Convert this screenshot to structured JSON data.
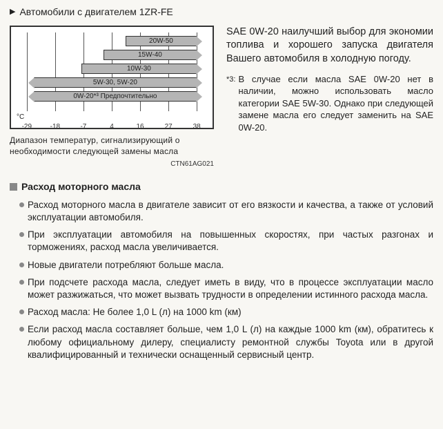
{
  "header": {
    "title": "Автомобили с двигателем 1ZR-FE"
  },
  "chart": {
    "unit_label": "°C",
    "ticks": [
      "-29",
      "-18",
      "-7",
      "4",
      "16",
      "27",
      "38"
    ],
    "bars": [
      {
        "label": "20W-50",
        "left_pct": 58,
        "right_pct": 100,
        "left_arrow": false,
        "right_arrow": true
      },
      {
        "label": "15W-40",
        "left_pct": 45,
        "right_pct": 100,
        "left_arrow": false,
        "right_arrow": true
      },
      {
        "label": "10W-30",
        "left_pct": 32,
        "right_pct": 100,
        "left_arrow": false,
        "right_arrow": true
      },
      {
        "label": "5W-30, 5W-20",
        "left_pct": 4,
        "right_pct": 100,
        "left_arrow": true,
        "right_arrow": true
      },
      {
        "label": "0W-20*³ Предпочтительно",
        "left_pct": 4,
        "right_pct": 100,
        "left_arrow": true,
        "right_arrow": true
      }
    ],
    "caption": "Диапазон температур, сигнализирующий о необходимости следующей замены масла",
    "code": "CTN61AG021"
  },
  "main_paragraph": "SAE 0W-20 наилучший выбор для экономии топлива и хорошего запуска двигателя Вашего автомобиля в холодную погоду.",
  "footnote": {
    "marker": "*3:",
    "text": "В случае если масла SAE 0W-20 нет в наличии, можно использовать масло категории SAE 5W-30. Однако при следующей замене масла его следует заменить на SAE 0W-20."
  },
  "consumption": {
    "heading": "Расход моторного масла",
    "items": [
      "Расход моторного масла в двигателе зависит от его вязкости и качества, а также от условий эксплуатации автомобиля.",
      "При эксплуатации автомобиля на повышенных скоростях, при частых разгонах и торможениях, расход масла увеличивается.",
      "Новые двигатели потребляют больше масла.",
      "При подсчете расхода масла, следует иметь в виду, что в процессе эксплуатации масло может разжижаться, что может вызвать трудности в определении истинного расхода масла.",
      "Расход масла: Не более 1,0 L (л) на 1000 km (км)",
      "Если расход масла составляет больше, чем 1,0 L (л) на каждые 1000 km (км), обратитесь к любому официальному дилеру, специалисту ремонтной службы Toyota или в другой квалифицированный и технически оснащенный сервисный центр."
    ]
  }
}
